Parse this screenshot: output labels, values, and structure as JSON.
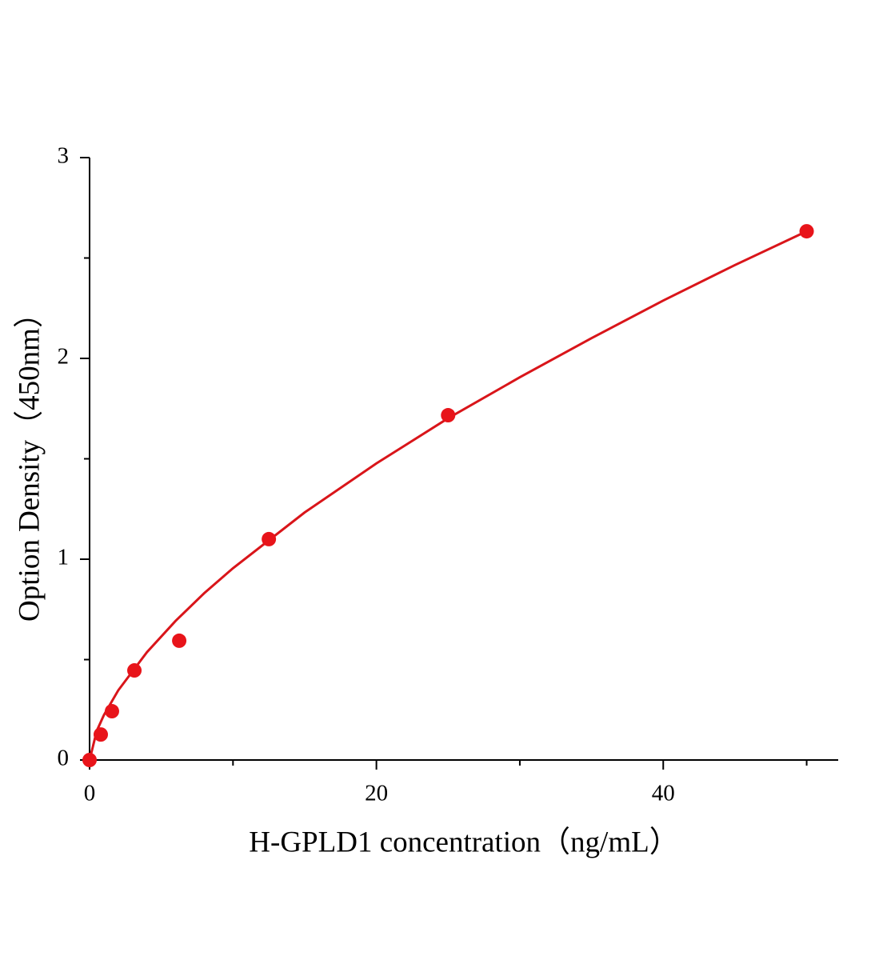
{
  "chart_data": {
    "type": "scatter",
    "x_label": "H-GPLD1 concentration（ng/mL）",
    "y_label": "Option Density（450nm）",
    "xlim": [
      0,
      52.2
    ],
    "ylim": [
      0,
      3
    ],
    "xticks": [
      0,
      20,
      40
    ],
    "yticks": [
      0,
      1,
      2,
      3
    ],
    "x_minor_ticks": [
      10,
      30,
      50
    ],
    "y_minor_ticks": [
      0.5,
      1.5,
      2.5
    ],
    "color": "#e8141a",
    "x": [
      0,
      0.78,
      1.56,
      3.125,
      6.25,
      12.5,
      25,
      50
    ],
    "values": [
      0,
      0.127,
      0.243,
      0.446,
      0.594,
      1.1,
      1.717,
      2.633
    ],
    "fit": {
      "type": "line",
      "color": "#d9151a",
      "x": [
        0,
        0.5,
        1,
        2,
        4,
        6,
        8,
        10,
        15,
        20,
        25,
        30,
        35,
        40,
        45,
        50
      ],
      "values": [
        0,
        0.145,
        0.224,
        0.347,
        0.537,
        0.693,
        0.831,
        0.955,
        1.233,
        1.477,
        1.702,
        1.906,
        2.101,
        2.288,
        2.465,
        2.633
      ]
    }
  }
}
